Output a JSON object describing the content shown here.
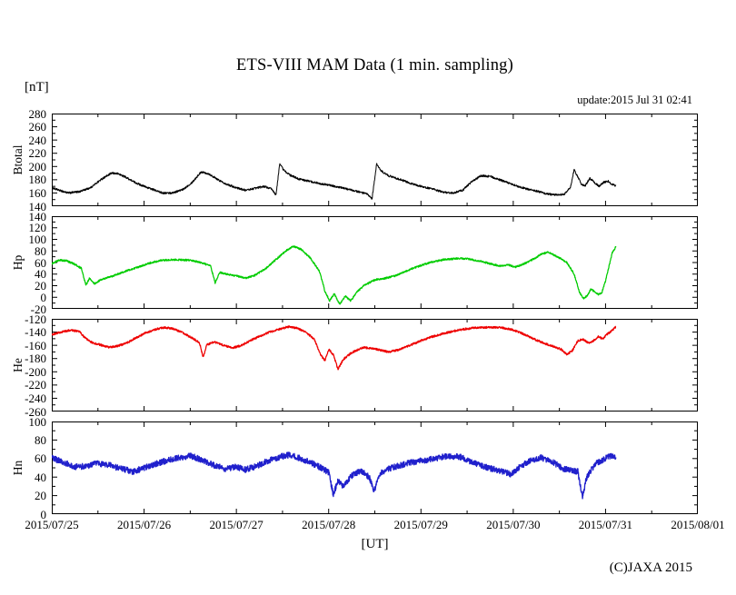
{
  "chart_data": {
    "type": "line",
    "title": "ETS-VIII MAM Data (1 min. sampling)",
    "unit_label": "[nT]",
    "update_label": "update:2015 Jul 31 02:41",
    "xlabel": "[UT]",
    "copyright": "(C)JAXA 2015",
    "x_axis": {
      "ticks": [
        "2015/07/25",
        "2015/07/26",
        "2015/07/27",
        "2015/07/28",
        "2015/07/29",
        "2015/07/30",
        "2015/07/31",
        "2015/08/01"
      ],
      "xlim_days": [
        0,
        7
      ],
      "major_tick_hours": 24,
      "minor_tick_hours": 12
    },
    "data_end_day": 6.112,
    "frame_color": "#000000",
    "panels": [
      {
        "name": "Btotal",
        "color": "#000000",
        "ylim": [
          140,
          280
        ],
        "ytick_step": 20,
        "ytick_minor_step": 10,
        "noise": 1.5,
        "keypoints": [
          [
            0.0,
            168
          ],
          [
            0.08,
            164
          ],
          [
            0.18,
            160
          ],
          [
            0.3,
            162
          ],
          [
            0.42,
            168
          ],
          [
            0.55,
            182
          ],
          [
            0.65,
            190
          ],
          [
            0.72,
            189
          ],
          [
            0.8,
            184
          ],
          [
            0.9,
            176
          ],
          [
            1.0,
            170
          ],
          [
            1.1,
            165
          ],
          [
            1.2,
            160
          ],
          [
            1.3,
            160
          ],
          [
            1.42,
            165
          ],
          [
            1.52,
            176
          ],
          [
            1.62,
            192
          ],
          [
            1.7,
            189
          ],
          [
            1.8,
            180
          ],
          [
            1.9,
            173
          ],
          [
            2.0,
            168
          ],
          [
            2.1,
            164
          ],
          [
            2.2,
            167
          ],
          [
            2.3,
            170
          ],
          [
            2.38,
            166
          ],
          [
            2.43,
            157
          ],
          [
            2.47,
            205
          ],
          [
            2.51,
            195
          ],
          [
            2.58,
            187
          ],
          [
            2.68,
            181
          ],
          [
            2.78,
            178
          ],
          [
            2.88,
            175
          ],
          [
            3.0,
            172
          ],
          [
            3.1,
            169
          ],
          [
            3.2,
            166
          ],
          [
            3.32,
            162
          ],
          [
            3.42,
            158
          ],
          [
            3.47,
            151
          ],
          [
            3.52,
            204
          ],
          [
            3.57,
            193
          ],
          [
            3.65,
            186
          ],
          [
            3.78,
            180
          ],
          [
            3.9,
            174
          ],
          [
            4.0,
            170
          ],
          [
            4.12,
            166
          ],
          [
            4.25,
            161
          ],
          [
            4.35,
            160
          ],
          [
            4.45,
            164
          ],
          [
            4.55,
            177
          ],
          [
            4.65,
            186
          ],
          [
            4.75,
            185
          ],
          [
            4.85,
            180
          ],
          [
            4.95,
            175
          ],
          [
            5.05,
            170
          ],
          [
            5.15,
            166
          ],
          [
            5.25,
            163
          ],
          [
            5.35,
            159
          ],
          [
            5.45,
            157
          ],
          [
            5.55,
            158
          ],
          [
            5.62,
            168
          ],
          [
            5.66,
            195
          ],
          [
            5.7,
            184
          ],
          [
            5.74,
            173
          ],
          [
            5.78,
            171
          ],
          [
            5.83,
            182
          ],
          [
            5.88,
            176
          ],
          [
            5.93,
            170
          ],
          [
            5.98,
            176
          ],
          [
            6.03,
            178
          ],
          [
            6.07,
            173
          ],
          [
            6.11,
            171
          ]
        ]
      },
      {
        "name": "Hp",
        "color": "#00cc00",
        "ylim": [
          -20,
          140
        ],
        "ytick_step": 20,
        "ytick_minor_step": 10,
        "noise": 1.5,
        "keypoints": [
          [
            0.0,
            58
          ],
          [
            0.08,
            64
          ],
          [
            0.16,
            63
          ],
          [
            0.25,
            57
          ],
          [
            0.32,
            50
          ],
          [
            0.37,
            21
          ],
          [
            0.41,
            33
          ],
          [
            0.46,
            23
          ],
          [
            0.53,
            30
          ],
          [
            0.65,
            36
          ],
          [
            0.8,
            45
          ],
          [
            0.95,
            53
          ],
          [
            1.08,
            60
          ],
          [
            1.2,
            64
          ],
          [
            1.35,
            65
          ],
          [
            1.5,
            64
          ],
          [
            1.62,
            60
          ],
          [
            1.72,
            54
          ],
          [
            1.77,
            25
          ],
          [
            1.82,
            43
          ],
          [
            1.9,
            40
          ],
          [
            2.0,
            37
          ],
          [
            2.1,
            33
          ],
          [
            2.2,
            38
          ],
          [
            2.32,
            50
          ],
          [
            2.45,
            68
          ],
          [
            2.55,
            82
          ],
          [
            2.62,
            88
          ],
          [
            2.7,
            83
          ],
          [
            2.8,
            68
          ],
          [
            2.9,
            45
          ],
          [
            2.96,
            10
          ],
          [
            3.01,
            -6
          ],
          [
            3.06,
            6
          ],
          [
            3.12,
            -12
          ],
          [
            3.18,
            2
          ],
          [
            3.24,
            -6
          ],
          [
            3.3,
            8
          ],
          [
            3.38,
            20
          ],
          [
            3.5,
            30
          ],
          [
            3.62,
            33
          ],
          [
            3.72,
            37
          ],
          [
            3.85,
            46
          ],
          [
            4.0,
            55
          ],
          [
            4.12,
            61
          ],
          [
            4.25,
            65
          ],
          [
            4.4,
            67
          ],
          [
            4.52,
            66
          ],
          [
            4.65,
            62
          ],
          [
            4.75,
            58
          ],
          [
            4.85,
            54
          ],
          [
            4.95,
            56
          ],
          [
            5.02,
            52
          ],
          [
            5.12,
            58
          ],
          [
            5.22,
            66
          ],
          [
            5.3,
            74
          ],
          [
            5.38,
            78
          ],
          [
            5.48,
            70
          ],
          [
            5.58,
            60
          ],
          [
            5.66,
            40
          ],
          [
            5.72,
            8
          ],
          [
            5.76,
            -2
          ],
          [
            5.8,
            2
          ],
          [
            5.84,
            14
          ],
          [
            5.88,
            10
          ],
          [
            5.92,
            5
          ],
          [
            5.96,
            8
          ],
          [
            6.0,
            28
          ],
          [
            6.04,
            55
          ],
          [
            6.07,
            76
          ],
          [
            6.11,
            87
          ]
        ]
      },
      {
        "name": "He",
        "color": "#ee0000",
        "ylim": [
          -260,
          -120
        ],
        "ytick_step": 20,
        "ytick_minor_step": 10,
        "noise": 1.5,
        "keypoints": [
          [
            0.0,
            -144
          ],
          [
            0.1,
            -140
          ],
          [
            0.2,
            -137
          ],
          [
            0.3,
            -139
          ],
          [
            0.36,
            -149
          ],
          [
            0.44,
            -156
          ],
          [
            0.52,
            -159
          ],
          [
            0.62,
            -163
          ],
          [
            0.72,
            -161
          ],
          [
            0.82,
            -156
          ],
          [
            0.92,
            -148
          ],
          [
            1.02,
            -141
          ],
          [
            1.12,
            -136
          ],
          [
            1.22,
            -133
          ],
          [
            1.32,
            -135
          ],
          [
            1.42,
            -141
          ],
          [
            1.52,
            -149
          ],
          [
            1.6,
            -156
          ],
          [
            1.64,
            -178
          ],
          [
            1.68,
            -159
          ],
          [
            1.76,
            -155
          ],
          [
            1.86,
            -160
          ],
          [
            1.96,
            -164
          ],
          [
            2.06,
            -160
          ],
          [
            2.16,
            -152
          ],
          [
            2.26,
            -146
          ],
          [
            2.36,
            -140
          ],
          [
            2.46,
            -136
          ],
          [
            2.56,
            -132
          ],
          [
            2.66,
            -134
          ],
          [
            2.74,
            -139
          ],
          [
            2.84,
            -150
          ],
          [
            2.92,
            -176
          ],
          [
            2.96,
            -183
          ],
          [
            3.0,
            -166
          ],
          [
            3.05,
            -174
          ],
          [
            3.1,
            -196
          ],
          [
            3.16,
            -181
          ],
          [
            3.25,
            -171
          ],
          [
            3.38,
            -163
          ],
          [
            3.52,
            -166
          ],
          [
            3.65,
            -170
          ],
          [
            3.75,
            -167
          ],
          [
            3.88,
            -160
          ],
          [
            4.0,
            -153
          ],
          [
            4.12,
            -147
          ],
          [
            4.25,
            -142
          ],
          [
            4.4,
            -137
          ],
          [
            4.55,
            -134
          ],
          [
            4.7,
            -133
          ],
          [
            4.85,
            -133
          ],
          [
            4.98,
            -136
          ],
          [
            5.08,
            -141
          ],
          [
            5.2,
            -149
          ],
          [
            5.32,
            -156
          ],
          [
            5.44,
            -162
          ],
          [
            5.52,
            -166
          ],
          [
            5.58,
            -174
          ],
          [
            5.64,
            -168
          ],
          [
            5.7,
            -153
          ],
          [
            5.76,
            -151
          ],
          [
            5.82,
            -157
          ],
          [
            5.87,
            -153
          ],
          [
            5.92,
            -147
          ],
          [
            5.97,
            -150
          ],
          [
            6.02,
            -143
          ],
          [
            6.06,
            -139
          ],
          [
            6.11,
            -132
          ]
        ]
      },
      {
        "name": "Hn",
        "color": "#2020cc",
        "ylim": [
          0,
          100
        ],
        "ytick_step": 20,
        "ytick_minor_step": 10,
        "noise": 3.2,
        "keypoints": [
          [
            0.0,
            61
          ],
          [
            0.12,
            56
          ],
          [
            0.25,
            51
          ],
          [
            0.38,
            52
          ],
          [
            0.5,
            55
          ],
          [
            0.62,
            53
          ],
          [
            0.75,
            49
          ],
          [
            0.88,
            46
          ],
          [
            1.0,
            50
          ],
          [
            1.12,
            54
          ],
          [
            1.25,
            58
          ],
          [
            1.38,
            61
          ],
          [
            1.5,
            63
          ],
          [
            1.62,
            59
          ],
          [
            1.75,
            53
          ],
          [
            1.88,
            49
          ],
          [
            2.0,
            51
          ],
          [
            2.1,
            48
          ],
          [
            2.22,
            52
          ],
          [
            2.35,
            58
          ],
          [
            2.48,
            62
          ],
          [
            2.58,
            64
          ],
          [
            2.7,
            60
          ],
          [
            2.82,
            55
          ],
          [
            2.92,
            50
          ],
          [
            3.0,
            45
          ],
          [
            3.05,
            21
          ],
          [
            3.1,
            36
          ],
          [
            3.16,
            30
          ],
          [
            3.24,
            41
          ],
          [
            3.35,
            47
          ],
          [
            3.44,
            40
          ],
          [
            3.49,
            24
          ],
          [
            3.55,
            44
          ],
          [
            3.68,
            50
          ],
          [
            3.82,
            54
          ],
          [
            3.95,
            57
          ],
          [
            4.1,
            59
          ],
          [
            4.25,
            62
          ],
          [
            4.42,
            62
          ],
          [
            4.55,
            56
          ],
          [
            4.7,
            51
          ],
          [
            4.85,
            47
          ],
          [
            4.98,
            43
          ],
          [
            5.08,
            52
          ],
          [
            5.2,
            58
          ],
          [
            5.3,
            61
          ],
          [
            5.42,
            57
          ],
          [
            5.52,
            50
          ],
          [
            5.62,
            47
          ],
          [
            5.7,
            46
          ],
          [
            5.75,
            19
          ],
          [
            5.79,
            38
          ],
          [
            5.84,
            47
          ],
          [
            5.9,
            55
          ],
          [
            5.96,
            58
          ],
          [
            6.02,
            62
          ],
          [
            6.07,
            63
          ],
          [
            6.11,
            60
          ]
        ]
      }
    ]
  }
}
